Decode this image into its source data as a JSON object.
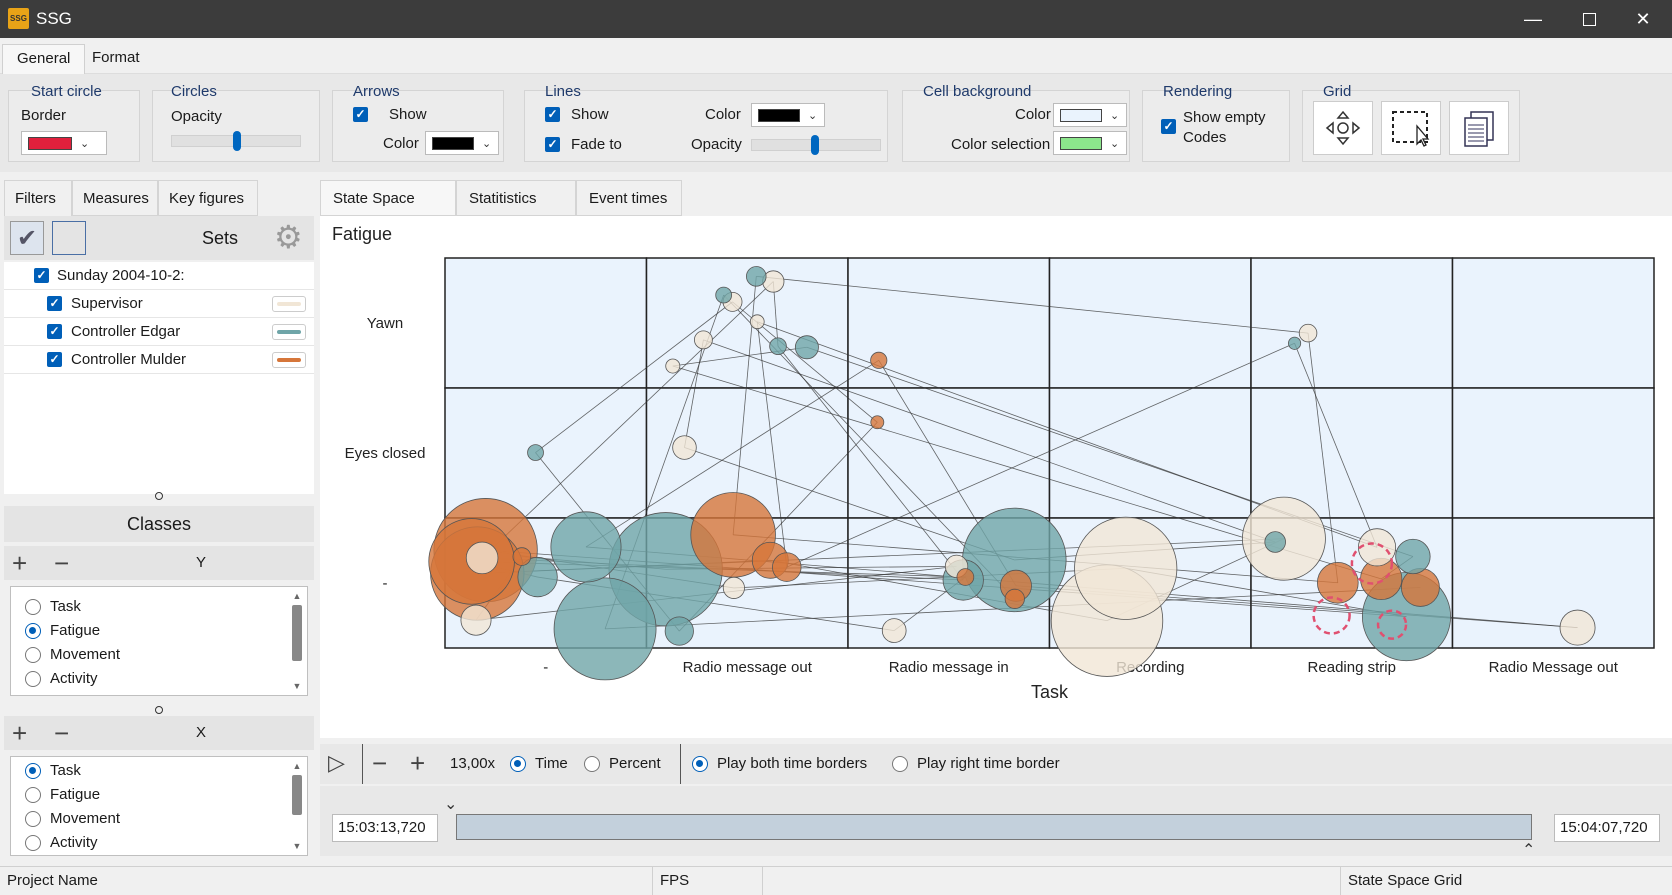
{
  "window": {
    "title": "SSG",
    "app_icon_text": "SSG"
  },
  "ribbon_tabs": [
    {
      "label": "General",
      "active": true
    },
    {
      "label": "Format",
      "active": false
    }
  ],
  "ribbon": {
    "start_circle": {
      "title": "Start circle",
      "border_label": "Border",
      "border_color": "#e0203c"
    },
    "circles": {
      "title": "Circles",
      "opacity_label": "Opacity",
      "opacity_level": 0.52
    },
    "arrows": {
      "title": "Arrows",
      "show_label": "Show",
      "show_checked": true,
      "color_label": "Color",
      "color": "#000000"
    },
    "lines": {
      "title": "Lines",
      "show_label": "Show",
      "show_checked": true,
      "fade_label": "Fade to",
      "fade_checked": true,
      "color_label": "Color",
      "color": "#000000",
      "opacity_label": "Opacity",
      "opacity_level": 0.5
    },
    "cell_background": {
      "title": "Cell background",
      "color_label": "Color",
      "color": "#eaf3fd",
      "selection_label": "Color selection",
      "selection_color": "#8ce68c"
    },
    "rendering": {
      "title": "Rendering",
      "show_empty_line1": "Show empty",
      "show_empty_line2": "Codes",
      "show_empty_checked": true
    },
    "grid": {
      "title": "Grid",
      "buttons": [
        "move-icon",
        "select-region-icon",
        "copy-icon"
      ]
    }
  },
  "left_tabs": [
    {
      "label": "Filters",
      "active": true
    },
    {
      "label": "Measures",
      "active": false
    },
    {
      "label": "Key figures",
      "active": false
    }
  ],
  "sets": {
    "header": "Sets",
    "items": [
      {
        "label": "Sunday 2004-10-2:",
        "checked": true,
        "indent": 0
      },
      {
        "label": "Supervisor",
        "checked": true,
        "indent": 1,
        "color": "#f1e6d6"
      },
      {
        "label": "Controller Edgar",
        "checked": true,
        "indent": 1,
        "color": "#6fa5a8"
      },
      {
        "label": "Controller Mulder",
        "checked": true,
        "indent": 1,
        "color": "#d6763a"
      }
    ]
  },
  "classes": {
    "header": "Classes",
    "y_label": "Y",
    "x_label": "X",
    "y_options": [
      {
        "label": "Task",
        "selected": false
      },
      {
        "label": "Fatigue",
        "selected": true
      },
      {
        "label": "Movement",
        "selected": false
      },
      {
        "label": "Activity",
        "selected": false
      }
    ],
    "x_options": [
      {
        "label": "Task",
        "selected": true
      },
      {
        "label": "Fatigue",
        "selected": false
      },
      {
        "label": "Movement",
        "selected": false
      },
      {
        "label": "Activity",
        "selected": false
      }
    ]
  },
  "center_tabs": [
    {
      "label": "State Space Grid",
      "active": true
    },
    {
      "label": "Statitistics grid",
      "active": false
    },
    {
      "label": "Event times",
      "active": false
    }
  ],
  "chart": {
    "title": "Fatigue",
    "xlabel": "Task",
    "x_categories": [
      "-",
      "Radio message out",
      "Radio message in",
      "Recording",
      "Reading strip",
      "Radio Message out"
    ],
    "y_categories": [
      "Yawn",
      "Eyes closed",
      "-"
    ]
  },
  "chart_data": {
    "type": "scatter",
    "title": "Fatigue",
    "xlabel": "Task",
    "ylabel": "",
    "x_categories": [
      "-",
      "Radio message out",
      "Radio message in",
      "Recording",
      "Reading strip",
      "Radio Message out"
    ],
    "y_categories": [
      "Yawn",
      "Eyes closed",
      "-"
    ],
    "series": [
      {
        "name": "Supervisor",
        "color": "#f1e6d6",
        "points": [
          [
            0,
            "-"
          ],
          [
            0,
            "-"
          ],
          [
            1,
            "Yawn"
          ],
          [
            1,
            "Yawn"
          ],
          [
            1,
            "Yawn"
          ],
          [
            1,
            "Yawn"
          ],
          [
            1,
            "Yawn"
          ],
          [
            1,
            "Eyes closed"
          ],
          [
            1,
            "-"
          ],
          [
            2,
            "-"
          ],
          [
            2,
            "-"
          ],
          [
            3,
            "-"
          ],
          [
            3,
            "-"
          ],
          [
            4,
            "Yawn"
          ],
          [
            4,
            "-"
          ],
          [
            4,
            "-"
          ],
          [
            5,
            "-"
          ]
        ]
      },
      {
        "name": "Controller Edgar",
        "color": "#6fa5a8",
        "points": [
          [
            0,
            "Eyes closed"
          ],
          [
            0,
            "-"
          ],
          [
            0,
            "-"
          ],
          [
            0,
            "-"
          ],
          [
            1,
            "Yawn"
          ],
          [
            1,
            "Yawn"
          ],
          [
            1,
            "Yawn"
          ],
          [
            1,
            "Yawn"
          ],
          [
            1,
            "-"
          ],
          [
            1,
            "-"
          ],
          [
            2,
            "-"
          ],
          [
            2,
            "-"
          ],
          [
            4,
            "Yawn"
          ],
          [
            4,
            "-"
          ],
          [
            4,
            "-"
          ],
          [
            4,
            "-"
          ]
        ]
      },
      {
        "name": "Controller Mulder",
        "color": "#d6763a",
        "points": [
          [
            0,
            "-"
          ],
          [
            0,
            "-"
          ],
          [
            0,
            "-"
          ],
          [
            0,
            "-"
          ],
          [
            1,
            "-"
          ],
          [
            1,
            "-"
          ],
          [
            1,
            "-"
          ],
          [
            2,
            "Yawn"
          ],
          [
            2,
            "Eyes closed"
          ],
          [
            2,
            "-"
          ],
          [
            2,
            "-"
          ],
          [
            2,
            "-"
          ],
          [
            4,
            "-"
          ],
          [
            4,
            "-"
          ],
          [
            4,
            "-"
          ]
        ]
      }
    ],
    "grid": true
  },
  "playbar": {
    "zoom": "13,00x",
    "time_label": "Time",
    "time_selected": true,
    "percent_label": "Percent",
    "percent_selected": false,
    "both_label": "Play both time borders",
    "both_selected": true,
    "right_label": "Play right time border",
    "right_selected": false
  },
  "timeline": {
    "start": "15:03:13,720",
    "end": "15:04:07,720"
  },
  "status": {
    "project": "Project Name",
    "fps": "FPS",
    "view": "State Space Grid"
  }
}
